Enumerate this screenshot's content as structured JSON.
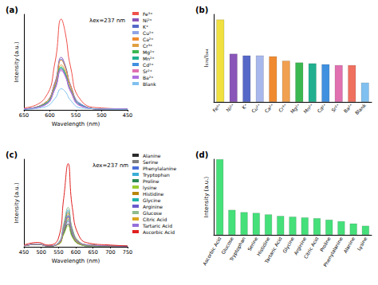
{
  "chart_data": [
    {
      "type": "line",
      "title": "(a)",
      "annotations": [
        "λex=237 nm"
      ],
      "x_label": "Wavelength (nm)",
      "y_label": "Intensity (a.u.)",
      "x": [
        450,
        500,
        540,
        560,
        570,
        578,
        590,
        610,
        650
      ],
      "xlim": [
        450,
        650
      ],
      "xticks": [
        450,
        500,
        550,
        600,
        650
      ],
      "x_inverted": true,
      "ylim": [
        0,
        100
      ],
      "tick_labels": "x",
      "grid": false,
      "legend": "right",
      "series": [
        {
          "name": "Fe³⁺",
          "color": "#f0504a",
          "values": [
            1,
            2,
            10,
            45,
            80,
            95,
            50,
            12,
            2
          ]
        },
        {
          "name": "Ni²⁺",
          "color": "#8a55b8",
          "values": [
            1,
            1,
            6,
            26,
            46,
            55,
            29,
            7,
            1
          ]
        },
        {
          "name": "K⁺",
          "color": "#5568c8",
          "values": [
            1,
            1,
            6,
            25,
            45,
            53,
            28,
            7,
            1
          ]
        },
        {
          "name": "Cu²⁺",
          "color": "#8fa4e6",
          "values": [
            1,
            1,
            6,
            25,
            44,
            53,
            27,
            7,
            1
          ]
        },
        {
          "name": "Ca²⁺",
          "color": "#f08a30",
          "values": [
            1,
            1,
            5,
            25,
            44,
            52,
            27,
            7,
            1
          ]
        },
        {
          "name": "Cr³⁺",
          "color": "#e0a040",
          "values": [
            1,
            1,
            5,
            22,
            40,
            47,
            25,
            6,
            1
          ]
        },
        {
          "name": "Mg²⁺",
          "color": "#3cb850",
          "values": [
            1,
            1,
            5,
            21,
            38,
            45,
            24,
            6,
            1
          ]
        },
        {
          "name": "Mn²⁺",
          "color": "#20b090",
          "values": [
            1,
            1,
            5,
            21,
            37,
            44,
            23,
            6,
            1
          ]
        },
        {
          "name": "Cd²⁺",
          "color": "#4090e0",
          "values": [
            1,
            1,
            5,
            20,
            36,
            43,
            23,
            5,
            1
          ]
        },
        {
          "name": "Sr²⁺",
          "color": "#e070b0",
          "values": [
            1,
            1,
            4,
            20,
            35,
            42,
            22,
            5,
            1
          ]
        },
        {
          "name": "Ba²⁺",
          "color": "#b070e0",
          "values": [
            1,
            1,
            4,
            19,
            35,
            41,
            22,
            5,
            1
          ]
        },
        {
          "name": "Blank",
          "color": "#80c0f0",
          "values": [
            0.5,
            1,
            2,
            10,
            19,
            22,
            12,
            3,
            0.5
          ]
        }
      ]
    },
    {
      "type": "bar",
      "title": "(b)",
      "y_label": "I₅₇₈/I₃₄₄",
      "categories": [
        "Fe³⁺",
        "Ni²⁺",
        "K⁺",
        "Cu²⁺",
        "Ca²⁺",
        "Cr³⁺",
        "Mg²⁺",
        "Mn²⁺",
        "Cd²⁺",
        "Sr²⁺",
        "Ba²⁺",
        "Blank"
      ],
      "values": [
        94,
        55,
        53,
        53,
        52,
        47,
        45,
        44,
        43,
        42,
        42,
        22
      ],
      "colors": [
        "#f0e040",
        "#8a55b8",
        "#5568c8",
        "#a8b8ec",
        "#f08a30",
        "#f0a050",
        "#3cb850",
        "#20b090",
        "#4090e0",
        "#e070b0",
        "#f07060",
        "#80c0f0"
      ],
      "ylim": [
        0,
        100
      ],
      "tick_labels": "x",
      "grid": false
    },
    {
      "type": "line",
      "title": "(c)",
      "annotations": [
        "λex=237 nm"
      ],
      "x_label": "Wavelength (nm)",
      "y_label": "Intensity (a.u.)",
      "x": [
        450,
        490,
        520,
        550,
        565,
        578,
        590,
        610,
        640,
        700,
        750
      ],
      "xlim": [
        450,
        750
      ],
      "xticks": [
        450,
        500,
        550,
        600,
        650,
        700,
        750
      ],
      "ylim": [
        0,
        100
      ],
      "tick_labels": "x",
      "grid": false,
      "legend": "right",
      "series": [
        {
          "name": "Alanine",
          "color": "#2b2b2b",
          "values": [
            1,
            3,
            1,
            3,
            15,
            26,
            12,
            3,
            1,
            1,
            0.5
          ]
        },
        {
          "name": "Serine",
          "color": "#7f7f7f",
          "values": [
            1,
            3,
            1,
            4,
            23,
            40,
            19,
            5,
            2,
            1,
            0.5
          ]
        },
        {
          "name": "Phenylalanine",
          "color": "#4a6fd8",
          "values": [
            1,
            3,
            1,
            3,
            17,
            29,
            14,
            4,
            1,
            1,
            0.5
          ]
        },
        {
          "name": "Tryptophan",
          "color": "#3aaed8",
          "values": [
            1,
            3,
            1,
            4,
            24,
            42,
            20,
            5,
            2,
            1,
            0.5
          ]
        },
        {
          "name": "Proline",
          "color": "#2e8b57",
          "values": [
            1,
            3,
            1,
            3,
            18,
            31,
            15,
            4,
            2,
            1,
            0.5
          ]
        },
        {
          "name": "lysine",
          "color": "#9acd32",
          "values": [
            1,
            3,
            1,
            3,
            14,
            24,
            11,
            3,
            1,
            1,
            0.5
          ]
        },
        {
          "name": "Histidine",
          "color": "#b8860b",
          "values": [
            1,
            3,
            1,
            4,
            22,
            38,
            18,
            5,
            2,
            1,
            0.5
          ]
        },
        {
          "name": "Glycine",
          "color": "#20b2aa",
          "values": [
            1,
            3,
            1,
            4,
            20,
            35,
            17,
            4,
            2,
            1,
            0.5
          ]
        },
        {
          "name": "Arginine",
          "color": "#6a5acd",
          "values": [
            1,
            3,
            1,
            4,
            20,
            34,
            16,
            4,
            2,
            1,
            0.5
          ]
        },
        {
          "name": "Glucose",
          "color": "#8fbc8f",
          "values": [
            1,
            3,
            1,
            5,
            26,
            45,
            21,
            6,
            2,
            1,
            0.5
          ]
        },
        {
          "name": "Citric Acid",
          "color": "#daa520",
          "values": [
            1,
            3,
            1,
            3,
            19,
            33,
            16,
            4,
            2,
            1,
            0.5
          ]
        },
        {
          "name": "Tartaric Acid",
          "color": "#9370db",
          "values": [
            1,
            3,
            1,
            4,
            21,
            36,
            17,
            5,
            2,
            1,
            0.5
          ]
        },
        {
          "name": "Ascorbic Acid",
          "color": "#e02020",
          "values": [
            2,
            5,
            2,
            10,
            55,
            95,
            45,
            12,
            4,
            2,
            1
          ]
        }
      ]
    },
    {
      "type": "bar",
      "title": "(d)",
      "y_label": "Intensity (a.u.)",
      "categories": [
        "Ascorbic Acid",
        "Glucose",
        "Tryptophan",
        "Serine",
        "Histidine",
        "Tartaric Acid",
        "Glycine",
        "Arginine",
        "Citric Acid",
        "Proline",
        "Phenylalanine",
        "Alanine",
        "Lysine"
      ],
      "values": [
        100,
        33,
        30,
        29,
        27,
        25,
        24,
        23,
        22,
        20,
        18,
        15,
        12
      ],
      "color": "#45e07a",
      "ylim": [
        0,
        100
      ],
      "tick_labels": "x",
      "grid": false
    }
  ]
}
